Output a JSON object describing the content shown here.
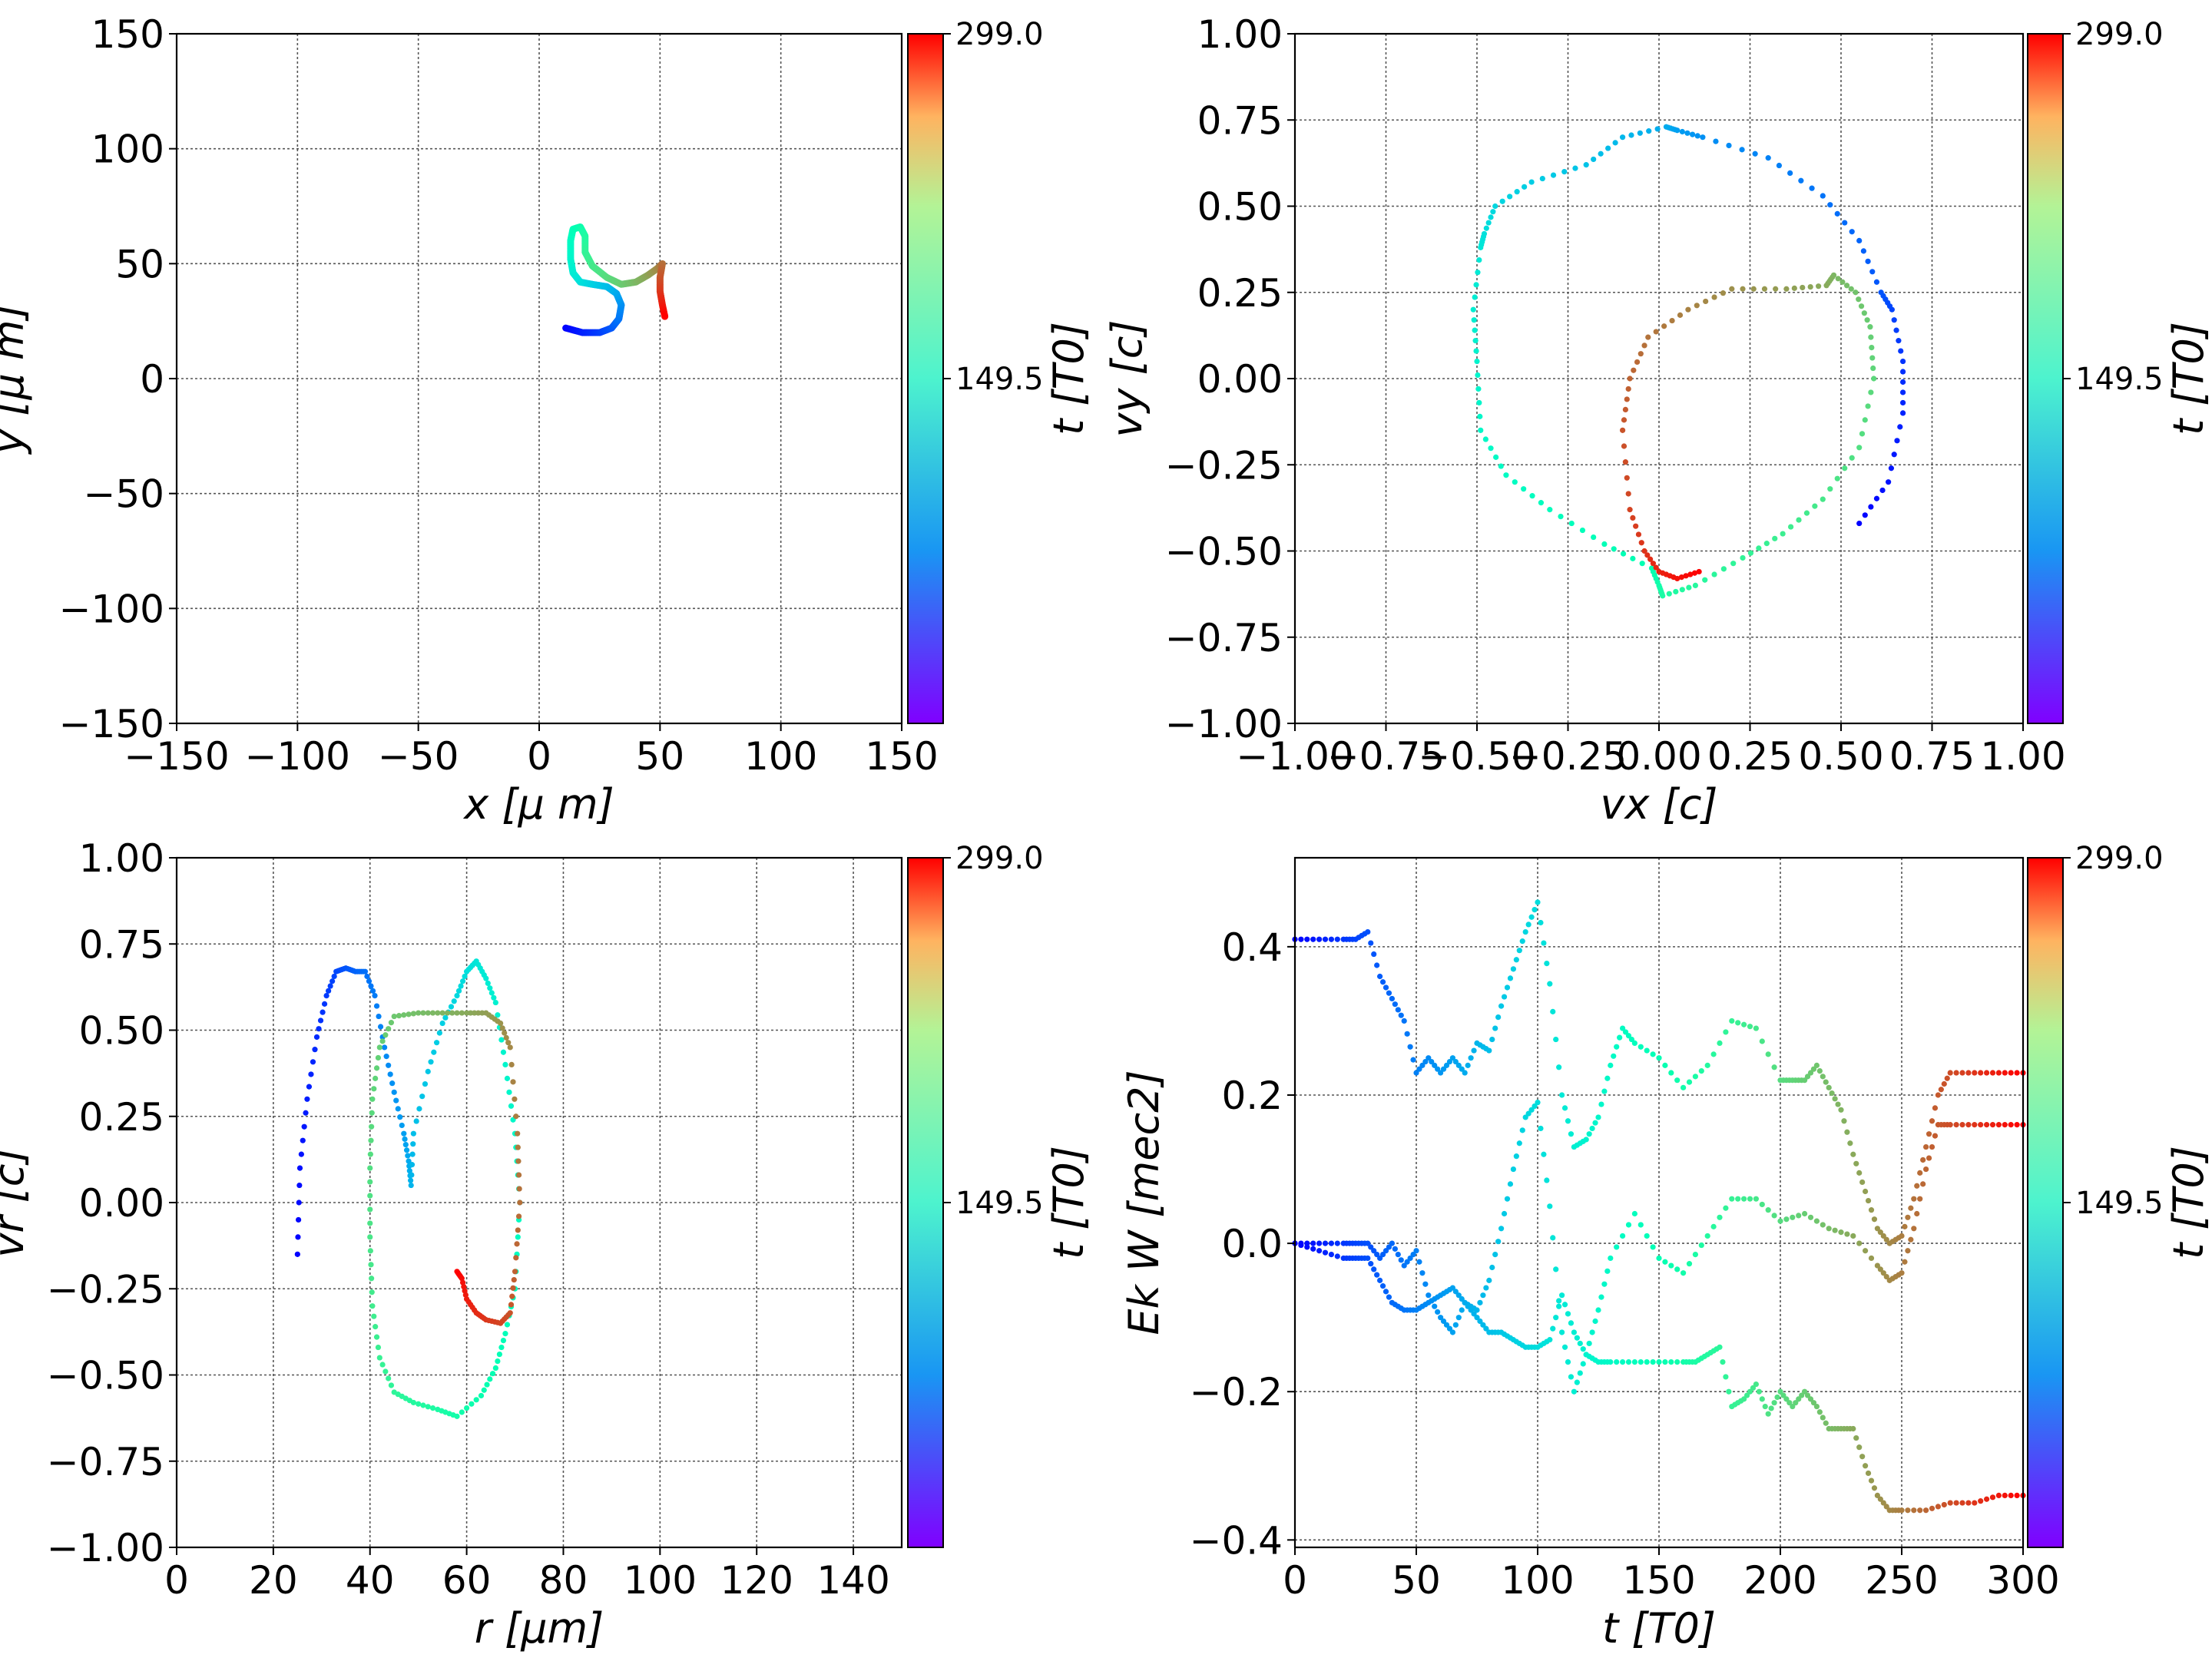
{
  "colormap": "rainbow",
  "chart_data": [
    {
      "id": "xy",
      "type": "scatter",
      "xlabel": "x  [μ m]",
      "ylabel": "y  [μ m]",
      "xlim": [
        -150,
        150
      ],
      "ylim": [
        -150,
        150
      ],
      "xticks": [
        -150,
        -100,
        -50,
        0,
        50,
        100,
        150
      ],
      "yticks": [
        -150,
        -100,
        -50,
        0,
        50,
        100,
        150
      ],
      "xticklabels": [
        "−150",
        "−100",
        "−50",
        "0",
        "50",
        "100",
        "150"
      ],
      "yticklabels": [
        "−150",
        "−100",
        "−50",
        "0",
        "50",
        "100",
        "150"
      ],
      "grid": true,
      "colorbar": {
        "label": "t [T0]",
        "ticklabels": [
          "299.0",
          "149.5"
        ],
        "range": [
          0,
          299
        ]
      },
      "points": [
        [
          11,
          22
        ],
        [
          18,
          20
        ],
        [
          25,
          20
        ],
        [
          30,
          22
        ],
        [
          33,
          26
        ],
        [
          34,
          32
        ],
        [
          32,
          37
        ],
        [
          28,
          40
        ],
        [
          22,
          41
        ],
        [
          17,
          42
        ],
        [
          14,
          46
        ],
        [
          13,
          52
        ],
        [
          13,
          60
        ],
        [
          14,
          65
        ],
        [
          17,
          66
        ],
        [
          19,
          62
        ],
        [
          19,
          55
        ],
        [
          22,
          49
        ],
        [
          28,
          44
        ],
        [
          34,
          41
        ],
        [
          40,
          42
        ],
        [
          45,
          45
        ],
        [
          49,
          48
        ],
        [
          51,
          50
        ],
        [
          50,
          44
        ],
        [
          50,
          38
        ],
        [
          51,
          32
        ],
        [
          52,
          27
        ]
      ]
    },
    {
      "id": "vxvy",
      "type": "scatter",
      "xlabel": "vx [c]",
      "ylabel": "vy [c]",
      "xlim": [
        -1,
        1
      ],
      "ylim": [
        -1,
        1
      ],
      "xticks": [
        -1,
        -0.75,
        -0.5,
        -0.25,
        0,
        0.25,
        0.5,
        0.75,
        1
      ],
      "yticks": [
        -1,
        -0.75,
        -0.5,
        -0.25,
        0,
        0.25,
        0.5,
        0.75,
        1
      ],
      "xticklabels": [
        "−1.00",
        "−0.75",
        "−0.50",
        "−0.25",
        "0.00",
        "0.25",
        "0.50",
        "0.75",
        "1.00"
      ],
      "yticklabels": [
        "−1.00",
        "−0.75",
        "−0.50",
        "−0.25",
        "0.00",
        "0.25",
        "0.50",
        "0.75",
        "1.00"
      ],
      "grid": true,
      "colorbar": {
        "label": "t [T0]",
        "ticklabels": [
          "299.0",
          "149.5"
        ],
        "range": [
          0,
          299
        ]
      },
      "points": [
        [
          0.55,
          -0.42
        ],
        [
          0.63,
          -0.3
        ],
        [
          0.67,
          -0.1
        ],
        [
          0.67,
          0.05
        ],
        [
          0.64,
          0.2
        ],
        [
          0.61,
          0.25
        ],
        [
          0.55,
          0.4
        ],
        [
          0.45,
          0.53
        ],
        [
          0.3,
          0.64
        ],
        [
          0.12,
          0.7
        ],
        [
          0.05,
          0.72
        ],
        [
          0.02,
          0.73
        ],
        [
          -0.1,
          0.7
        ],
        [
          -0.2,
          0.62
        ],
        [
          -0.35,
          0.57
        ],
        [
          -0.45,
          0.5
        ],
        [
          -0.48,
          0.42
        ],
        [
          -0.49,
          0.38
        ],
        [
          -0.51,
          0.2
        ],
        [
          -0.5,
          0.05
        ],
        [
          -0.49,
          -0.15
        ],
        [
          -0.42,
          -0.28
        ],
        [
          -0.3,
          -0.38
        ],
        [
          -0.15,
          -0.48
        ],
        [
          -0.02,
          -0.55
        ],
        [
          0.0,
          -0.6
        ],
        [
          0.01,
          -0.63
        ],
        [
          0.1,
          -0.6
        ],
        [
          0.23,
          -0.52
        ],
        [
          0.34,
          -0.45
        ],
        [
          0.45,
          -0.35
        ],
        [
          0.55,
          -0.2
        ],
        [
          0.59,
          0.0
        ],
        [
          0.58,
          0.15
        ],
        [
          0.54,
          0.25
        ],
        [
          0.48,
          0.3
        ],
        [
          0.46,
          0.27
        ],
        [
          0.35,
          0.26
        ],
        [
          0.2,
          0.26
        ],
        [
          0.08,
          0.2
        ],
        [
          -0.03,
          0.12
        ],
        [
          -0.08,
          0.0
        ],
        [
          -0.1,
          -0.15
        ],
        [
          -0.08,
          -0.38
        ],
        [
          -0.04,
          -0.5
        ],
        [
          0.0,
          -0.56
        ],
        [
          0.05,
          -0.58
        ],
        [
          0.11,
          -0.56
        ]
      ]
    },
    {
      "id": "rvr",
      "type": "scatter",
      "xlabel": "r [μm]",
      "ylabel": "vr [c]",
      "xlim": [
        0,
        150
      ],
      "ylim": [
        -1,
        1
      ],
      "xticks": [
        0,
        20,
        40,
        60,
        80,
        100,
        120,
        140
      ],
      "yticks": [
        -1,
        -0.75,
        -0.5,
        -0.25,
        0,
        0.25,
        0.5,
        0.75,
        1
      ],
      "xticklabels": [
        "0",
        "20",
        "40",
        "60",
        "80",
        "100",
        "120",
        "140"
      ],
      "yticklabels": [
        "−1.00",
        "−0.75",
        "−0.50",
        "−0.25",
        "0.00",
        "0.25",
        "0.50",
        "0.75",
        "1.00"
      ],
      "grid": true,
      "colorbar": {
        "label": "t [T0]",
        "ticklabels": [
          "299.0",
          "149.5"
        ],
        "range": [
          0,
          299
        ]
      },
      "points": [
        [
          25,
          -0.15
        ],
        [
          25.5,
          0.1
        ],
        [
          27,
          0.3
        ],
        [
          29,
          0.48
        ],
        [
          31,
          0.6
        ],
        [
          33,
          0.67
        ],
        [
          35,
          0.68
        ],
        [
          37,
          0.67
        ],
        [
          39,
          0.67
        ],
        [
          41,
          0.6
        ],
        [
          43,
          0.45
        ],
        [
          45,
          0.32
        ],
        [
          47,
          0.2
        ],
        [
          48,
          0.12
        ],
        [
          48.5,
          0.05
        ],
        [
          49,
          0.2
        ],
        [
          52,
          0.38
        ],
        [
          55,
          0.52
        ],
        [
          58,
          0.6
        ],
        [
          60,
          0.67
        ],
        [
          62,
          0.7
        ],
        [
          64,
          0.65
        ],
        [
          66,
          0.58
        ],
        [
          68,
          0.4
        ],
        [
          70,
          0.2
        ],
        [
          71,
          0.0
        ],
        [
          70,
          -0.25
        ],
        [
          68,
          -0.38
        ],
        [
          66,
          -0.48
        ],
        [
          63,
          -0.56
        ],
        [
          58,
          -0.62
        ],
        [
          54,
          -0.6
        ],
        [
          49,
          -0.58
        ],
        [
          45,
          -0.55
        ],
        [
          42,
          -0.45
        ],
        [
          40.5,
          -0.3
        ],
        [
          40,
          -0.1
        ],
        [
          40,
          0.1
        ],
        [
          40.5,
          0.3
        ],
        [
          42,
          0.45
        ],
        [
          45,
          0.54
        ],
        [
          50,
          0.55
        ],
        [
          55,
          0.55
        ],
        [
          60,
          0.55
        ],
        [
          64,
          0.55
        ],
        [
          67,
          0.52
        ],
        [
          69,
          0.45
        ],
        [
          70.5,
          0.2
        ],
        [
          71,
          0.0
        ],
        [
          70,
          -0.2
        ],
        [
          69,
          -0.32
        ],
        [
          67,
          -0.35
        ],
        [
          64,
          -0.34
        ],
        [
          62,
          -0.32
        ],
        [
          60,
          -0.28
        ],
        [
          59,
          -0.22
        ],
        [
          58,
          -0.2
        ]
      ]
    },
    {
      "id": "ekw",
      "type": "scatter",
      "xlabel": "t [T0]",
      "ylabel": "Ek W [mec2]",
      "xlim": [
        0,
        300
      ],
      "ylim": [
        -0.41,
        0.52
      ],
      "xticks": [
        0,
        50,
        100,
        150,
        200,
        250,
        300
      ],
      "yticks": [
        -0.4,
        -0.2,
        0,
        0.2,
        0.4
      ],
      "xticklabels": [
        "0",
        "50",
        "100",
        "150",
        "200",
        "250",
        "300"
      ],
      "yticklabels": [
        "−0.4",
        "−0.2",
        "0.0",
        "0.2",
        "0.4"
      ],
      "grid": true,
      "colorbar": {
        "label": "t [T0]",
        "ticklabels": [
          "299.0",
          "149.5"
        ],
        "range": [
          0,
          299
        ]
      },
      "series": [
        {
          "x": [
            0,
            10,
            20,
            25,
            30,
            35,
            40,
            45,
            50,
            55,
            60,
            65,
            70,
            75,
            80,
            85,
            90,
            95,
            100,
            105,
            110,
            115,
            120,
            125,
            130,
            135,
            140,
            150,
            160,
            170,
            180,
            190,
            200,
            205,
            210,
            215,
            220,
            225,
            230,
            235,
            240,
            245,
            250,
            255,
            260,
            265,
            270,
            280,
            290,
            300
          ],
          "y": [
            0.41,
            0.41,
            0.41,
            0.41,
            0.42,
            0.36,
            0.33,
            0.3,
            0.23,
            0.25,
            0.23,
            0.25,
            0.23,
            0.27,
            0.26,
            0.32,
            0.37,
            0.42,
            0.46,
            0.35,
            0.2,
            0.13,
            0.14,
            0.17,
            0.24,
            0.29,
            0.27,
            0.25,
            0.21,
            0.24,
            0.3,
            0.29,
            0.22,
            0.22,
            0.22,
            0.24,
            0.21,
            0.18,
            0.12,
            0.07,
            0.02,
            0.0,
            0.01,
            0.06,
            0.13,
            0.2,
            0.23,
            0.23,
            0.23,
            0.23
          ]
        },
        {
          "x": [
            0,
            10,
            20,
            25,
            30,
            35,
            40,
            45,
            50,
            55,
            60,
            65,
            70,
            75,
            80,
            85,
            90,
            95,
            100,
            105,
            110,
            115,
            120,
            125,
            130,
            140,
            150,
            160,
            170,
            180,
            190,
            200,
            210,
            220,
            230,
            240,
            245,
            250,
            255,
            260,
            265,
            270,
            280,
            290,
            300
          ],
          "y": [
            0,
            0,
            0,
            0,
            0,
            -0.02,
            0.0,
            -0.03,
            -0.01,
            -0.07,
            -0.1,
            -0.12,
            -0.08,
            -0.09,
            -0.05,
            0.02,
            0.1,
            0.17,
            0.19,
            0.05,
            -0.12,
            -0.2,
            -0.15,
            -0.09,
            -0.02,
            0.04,
            -0.02,
            -0.04,
            0.01,
            0.06,
            0.06,
            0.03,
            0.04,
            0.02,
            0.01,
            -0.03,
            -0.05,
            -0.04,
            0.02,
            0.1,
            0.16,
            0.16,
            0.16,
            0.16,
            0.16
          ]
        },
        {
          "x": [
            0,
            10,
            20,
            25,
            30,
            35,
            40,
            45,
            50,
            55,
            60,
            65,
            70,
            75,
            80,
            85,
            90,
            95,
            100,
            105,
            110,
            115,
            120,
            125,
            130,
            140,
            150,
            160,
            165,
            170,
            175,
            180,
            185,
            190,
            195,
            200,
            205,
            210,
            215,
            220,
            225,
            230,
            235,
            240,
            245,
            250,
            260,
            270,
            280,
            290,
            300
          ],
          "y": [
            0,
            -0.01,
            -0.02,
            -0.02,
            -0.02,
            -0.05,
            -0.08,
            -0.09,
            -0.09,
            -0.08,
            -0.07,
            -0.06,
            -0.08,
            -0.1,
            -0.12,
            -0.12,
            -0.13,
            -0.14,
            -0.14,
            -0.13,
            -0.07,
            -0.12,
            -0.15,
            -0.16,
            -0.16,
            -0.16,
            -0.16,
            -0.16,
            -0.16,
            -0.15,
            -0.14,
            -0.22,
            -0.21,
            -0.19,
            -0.23,
            -0.2,
            -0.22,
            -0.2,
            -0.22,
            -0.25,
            -0.25,
            -0.25,
            -0.3,
            -0.34,
            -0.36,
            -0.36,
            -0.36,
            -0.35,
            -0.35,
            -0.34,
            -0.34
          ]
        }
      ]
    }
  ]
}
